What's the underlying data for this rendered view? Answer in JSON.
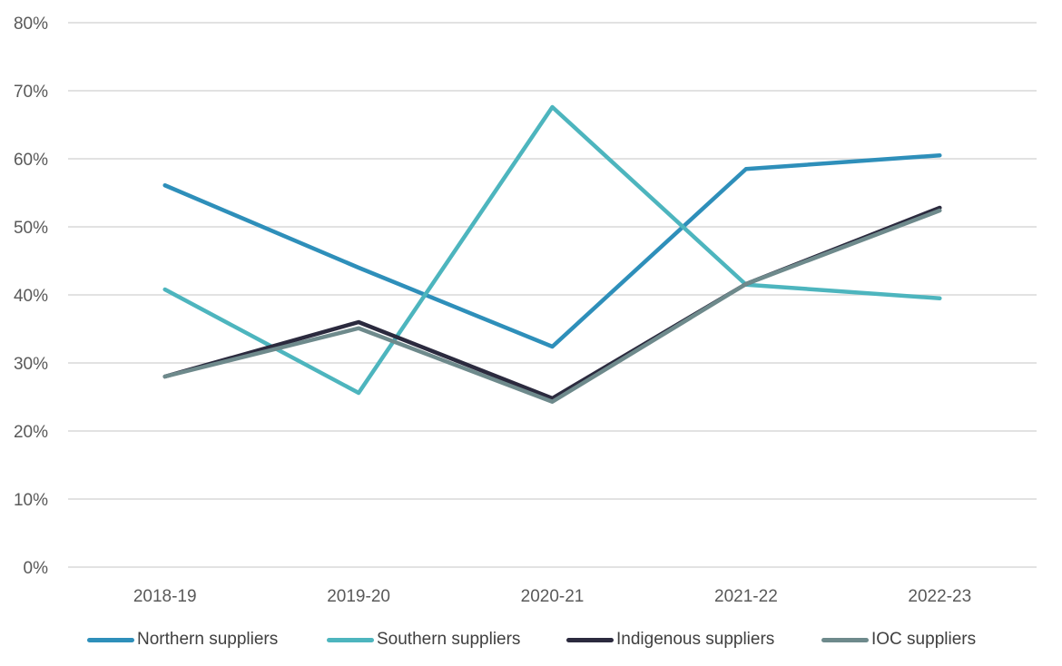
{
  "chart_data": {
    "type": "line",
    "title": "",
    "xlabel": "",
    "ylabel": "",
    "categories": [
      "2018-19",
      "2019-20",
      "2020-21",
      "2021-22",
      "2022-23"
    ],
    "ylim": [
      0,
      80
    ],
    "yticks": [
      0,
      10,
      20,
      30,
      40,
      50,
      60,
      70,
      80
    ],
    "ytick_labels": [
      "0%",
      "10%",
      "20%",
      "30%",
      "40%",
      "50%",
      "60%",
      "70%",
      "80%"
    ],
    "grid": true,
    "legend_position": "bottom",
    "series": [
      {
        "name": "Northern suppliers",
        "color": "#2E8FBA",
        "values": [
          56.1,
          44.0,
          32.4,
          58.5,
          60.5
        ]
      },
      {
        "name": "Southern suppliers",
        "color": "#4DB5BE",
        "values": [
          40.8,
          25.6,
          67.6,
          41.5,
          39.5
        ]
      },
      {
        "name": "Indigenous suppliers",
        "color": "#2B2A3E",
        "values": [
          28.0,
          36.0,
          24.8,
          41.6,
          52.8
        ]
      },
      {
        "name": "IOC suppliers",
        "color": "#6E8A8C",
        "values": [
          28.0,
          35.1,
          24.3,
          41.6,
          52.4
        ]
      }
    ]
  }
}
